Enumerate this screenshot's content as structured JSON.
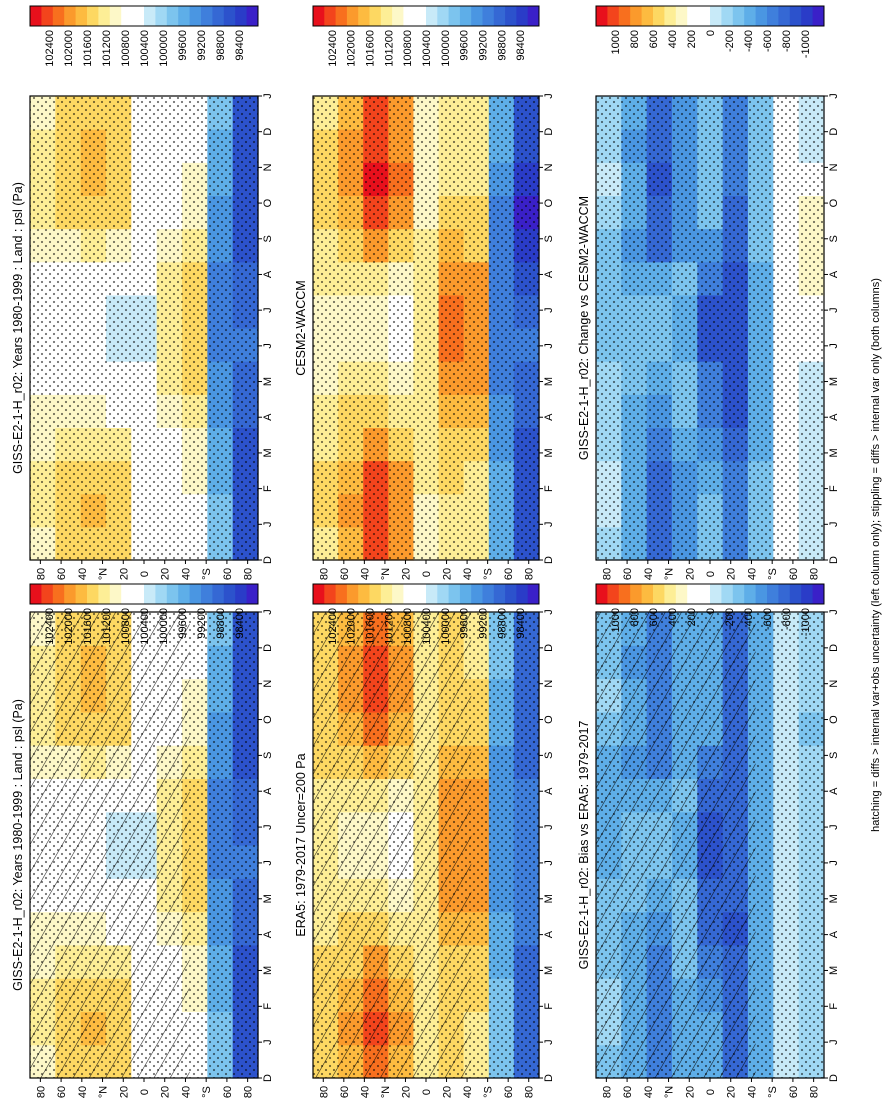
{
  "figure": {
    "footnote": "hatching = diffs > internal var+obs uncertainty (left column only); stippling = diffs > internal var only (both columns)",
    "month_ticks": [
      "D",
      "J",
      "F",
      "M",
      "A",
      "M",
      "J",
      "J",
      "A",
      "S",
      "O",
      "N",
      "D",
      "J"
    ],
    "lat_ticks": [
      "80",
      "60",
      "40",
      "°N",
      "20",
      "0",
      "20",
      "40",
      "°S",
      "60",
      "80"
    ],
    "colorbar_abs": {
      "labels": [
        "102400",
        "102000",
        "101600",
        "101200",
        "100800",
        "100400",
        "100000",
        "99600",
        "99200",
        "98800",
        "98400"
      ],
      "colors": [
        "#e8101c",
        "#f3441c",
        "#f86f1e",
        "#fb9a2c",
        "#fdbb40",
        "#fdd862",
        "#fdee96",
        "#fdf8c8",
        "#ffffff",
        "#ffffff",
        "#c8eaf8",
        "#a0d8f4",
        "#7cc4ee",
        "#5eaee8",
        "#4a96e2",
        "#3f7fdc",
        "#3568d4",
        "#2c52cc",
        "#2a3cc8",
        "#3a20c8"
      ]
    },
    "colorbar_diff": {
      "labels": [
        "1000",
        "800",
        "600",
        "400",
        "200",
        "0",
        "-200",
        "-400",
        "-600",
        "-800",
        "-1000"
      ],
      "colors": [
        "#e8101c",
        "#f3441c",
        "#f86f1e",
        "#fb9a2c",
        "#fdbb40",
        "#fdd862",
        "#fdee96",
        "#fdf8c8",
        "#ffffff",
        "#ffffff",
        "#c8eaf8",
        "#a0d8f4",
        "#7cc4ee",
        "#5eaee8",
        "#4a96e2",
        "#3f7fdc",
        "#3568d4",
        "#2c52cc",
        "#2a3cc8",
        "#3a20c8"
      ]
    }
  },
  "chart_data": [
    {
      "type": "heatmap",
      "panel": "top-left",
      "title": "GISS-E2-1-H_r02: Years 1980-1999 : Land : psl (Pa)",
      "x": [
        "D",
        "J",
        "F",
        "M",
        "A",
        "M",
        "J",
        "J",
        "A",
        "S",
        "O",
        "N",
        "D",
        "J"
      ],
      "y": [
        80,
        60,
        40,
        20,
        0,
        -20,
        -40,
        -60,
        -80
      ],
      "xlabel": "month",
      "ylabel": "latitude",
      "colorbar": "abs",
      "overlay": "hatching+stippling",
      "features": {
        "nh_high_peak_pa": 101800,
        "nh_high_months": [
          "N",
          "D",
          "J",
          "F"
        ],
        "sh_high_peak_pa": 101600,
        "sh_high_months": [
          "J",
          "J",
          "A"
        ],
        "equatorial_low_pa": 100200,
        "southern_ocean_low_pa": 98600
      },
      "values": [
        [
          101000,
          101200,
          101200,
          101000,
          100900,
          100800,
          100700,
          100700,
          100800,
          100900,
          101100,
          101200,
          101100,
          101000
        ],
        [
          101300,
          101400,
          101300,
          101100,
          100900,
          100800,
          100700,
          100700,
          100800,
          101000,
          101300,
          101400,
          101300,
          101300
        ],
        [
          101500,
          101600,
          101500,
          101200,
          100900,
          100700,
          100600,
          100600,
          100800,
          101100,
          101500,
          101700,
          101600,
          101500
        ],
        [
          101300,
          101400,
          101300,
          101100,
          100800,
          100600,
          100400,
          100400,
          100700,
          101000,
          101300,
          101500,
          101400,
          101300
        ],
        [
          100700,
          100700,
          100700,
          100600,
          100500,
          100500,
          100400,
          100400,
          100500,
          100600,
          100700,
          100700,
          100700,
          100700
        ],
        [
          100600,
          100600,
          100700,
          100800,
          100900,
          101100,
          101200,
          101200,
          101100,
          100900,
          100700,
          100600,
          100600,
          100600
        ],
        [
          100800,
          100800,
          100900,
          101000,
          101200,
          101400,
          101500,
          101500,
          101400,
          101200,
          101000,
          100900,
          100800,
          100800
        ],
        [
          99800,
          99800,
          99700,
          99600,
          99500,
          99400,
          99300,
          99300,
          99300,
          99400,
          99500,
          99600,
          99700,
          99800
        ],
        [
          98800,
          98700,
          98700,
          98800,
          98900,
          99000,
          99100,
          99000,
          98900,
          98800,
          98700,
          98700,
          98700,
          98800
        ]
      ]
    },
    {
      "type": "heatmap",
      "panel": "top-right",
      "title": "GISS-E2-1-H_r02: Years 1980-1999 : Land : psl (Pa)",
      "x": [
        "D",
        "J",
        "F",
        "M",
        "A",
        "M",
        "J",
        "J",
        "A",
        "S",
        "O",
        "N",
        "D",
        "J"
      ],
      "y": [
        80,
        60,
        40,
        20,
        0,
        -20,
        -40,
        -60,
        -80
      ],
      "xlabel": "month",
      "ylabel": "latitude",
      "colorbar": "abs",
      "overlay": "stippling",
      "values": [
        [
          101000,
          101200,
          101200,
          101000,
          100900,
          100800,
          100700,
          100700,
          100800,
          100900,
          101100,
          101200,
          101100,
          101000
        ],
        [
          101300,
          101400,
          101300,
          101100,
          100900,
          100800,
          100700,
          100700,
          100800,
          101000,
          101300,
          101400,
          101300,
          101300
        ],
        [
          101500,
          101600,
          101500,
          101200,
          100900,
          100700,
          100600,
          100600,
          100800,
          101100,
          101500,
          101700,
          101600,
          101500
        ],
        [
          101300,
          101400,
          101300,
          101100,
          100800,
          100600,
          100400,
          100400,
          100700,
          101000,
          101300,
          101500,
          101400,
          101300
        ],
        [
          100700,
          100700,
          100700,
          100600,
          100500,
          100500,
          100400,
          100400,
          100500,
          100600,
          100700,
          100700,
          100700,
          100700
        ],
        [
          100600,
          100600,
          100700,
          100800,
          100900,
          101100,
          101200,
          101200,
          101100,
          100900,
          100700,
          100600,
          100600,
          100600
        ],
        [
          100800,
          100800,
          100900,
          101000,
          101200,
          101400,
          101500,
          101500,
          101400,
          101200,
          101000,
          100900,
          100800,
          100800
        ],
        [
          99800,
          99800,
          99700,
          99600,
          99500,
          99400,
          99300,
          99300,
          99300,
          99400,
          99500,
          99600,
          99700,
          99800
        ],
        [
          98800,
          98700,
          98700,
          98800,
          98900,
          99000,
          99100,
          99000,
          98900,
          98800,
          98700,
          98700,
          98700,
          98800
        ]
      ]
    },
    {
      "type": "heatmap",
      "panel": "middle-left",
      "title": "ERA5: 1979-2017 Uncer=200 Pa",
      "x": [
        "D",
        "J",
        "F",
        "M",
        "A",
        "M",
        "J",
        "J",
        "A",
        "S",
        "O",
        "N",
        "D",
        "J"
      ],
      "y": [
        80,
        60,
        40,
        20,
        0,
        -20,
        -40,
        -60,
        -80
      ],
      "xlabel": "month",
      "ylabel": "latitude",
      "colorbar": "abs",
      "overlay": "hatching+stippling",
      "values": [
        [
          101300,
          101400,
          101400,
          101300,
          101200,
          101100,
          101100,
          101100,
          101200,
          101300,
          101400,
          101400,
          101400,
          101300
        ],
        [
          101700,
          101800,
          101700,
          101500,
          101300,
          101100,
          101000,
          101000,
          101200,
          101500,
          101700,
          101800,
          101800,
          101700
        ],
        [
          102100,
          102200,
          102100,
          101800,
          101400,
          101100,
          100900,
          100900,
          101200,
          101700,
          102100,
          102300,
          102200,
          102100
        ],
        [
          101700,
          101800,
          101700,
          101400,
          101100,
          100900,
          100800,
          100800,
          101000,
          101400,
          101700,
          101900,
          101800,
          101700
        ],
        [
          101100,
          101100,
          101200,
          101200,
          101200,
          101200,
          101200,
          101200,
          101200,
          101200,
          101100,
          101100,
          101100,
          101100
        ],
        [
          101300,
          101300,
          101400,
          101500,
          101700,
          101800,
          101900,
          101900,
          101800,
          101600,
          101400,
          101300,
          101300,
          101300
        ],
        [
          101200,
          101200,
          101300,
          101400,
          101600,
          101800,
          101900,
          101900,
          101800,
          101600,
          101400,
          101300,
          101200,
          101200
        ],
        [
          99900,
          99900,
          99800,
          99700,
          99600,
          99500,
          99400,
          99400,
          99400,
          99500,
          99600,
          99700,
          99800,
          99900
        ],
        [
          99000,
          98900,
          98900,
          99000,
          99100,
          99200,
          99300,
          99200,
          99100,
          99000,
          98900,
          98900,
          98900,
          99000
        ]
      ]
    },
    {
      "type": "heatmap",
      "panel": "middle-right",
      "title": "CESM2-WACCM",
      "x": [
        "D",
        "J",
        "F",
        "M",
        "A",
        "M",
        "J",
        "J",
        "A",
        "S",
        "O",
        "N",
        "D",
        "J"
      ],
      "y": [
        80,
        60,
        40,
        20,
        0,
        -20,
        -40,
        -60,
        -80
      ],
      "xlabel": "month",
      "ylabel": "latitude",
      "colorbar": "abs",
      "overlay": "stippling",
      "values": [
        [
          101200,
          101300,
          101300,
          101200,
          101100,
          101000,
          101000,
          101000,
          101100,
          101200,
          101300,
          101300,
          101300,
          101200
        ],
        [
          101700,
          101800,
          101700,
          101500,
          101300,
          101100,
          101000,
          101000,
          101200,
          101500,
          101700,
          101800,
          101800,
          101700
        ],
        [
          102200,
          102300,
          102200,
          101800,
          101400,
          101100,
          100900,
          100900,
          101200,
          101800,
          102200,
          102400,
          102300,
          102200
        ],
        [
          101800,
          101900,
          101800,
          101500,
          101100,
          100900,
          100800,
          100800,
          101000,
          101500,
          101800,
          102000,
          101900,
          101800
        ],
        [
          101000,
          101000,
          101100,
          101100,
          101100,
          101100,
          101200,
          101200,
          101100,
          101100,
          101000,
          101000,
          101000,
          101000
        ],
        [
          101200,
          101200,
          101300,
          101500,
          101700,
          101900,
          102000,
          102000,
          101900,
          101600,
          101400,
          101200,
          101200,
          101200
        ],
        [
          101100,
          101100,
          101200,
          101400,
          101600,
          101800,
          101900,
          101900,
          101800,
          101500,
          101300,
          101200,
          101100,
          101100
        ],
        [
          99700,
          99700,
          99600,
          99500,
          99400,
          99300,
          99200,
          99100,
          99100,
          99200,
          99300,
          99500,
          99600,
          99700
        ],
        [
          98800,
          98700,
          98700,
          98800,
          98900,
          99000,
          99100,
          98900,
          98700,
          98500,
          98400,
          98500,
          98700,
          98800
        ]
      ]
    },
    {
      "type": "heatmap",
      "panel": "bottom-left",
      "title": "GISS-E2-1-H_r02: Bias vs ERA5: 1979-2017",
      "x": [
        "D",
        "J",
        "F",
        "M",
        "A",
        "M",
        "J",
        "J",
        "A",
        "S",
        "O",
        "N",
        "D",
        "J"
      ],
      "y": [
        80,
        60,
        40,
        20,
        0,
        -20,
        -40,
        -60,
        -80
      ],
      "xlabel": "month",
      "ylabel": "latitude",
      "colorbar": "diff",
      "overlay": "hatching+stippling",
      "values": [
        [
          -300,
          -200,
          -200,
          -300,
          -300,
          -300,
          -400,
          -400,
          -400,
          -400,
          -300,
          -200,
          -300,
          -300
        ],
        [
          -400,
          -400,
          -400,
          -400,
          -400,
          -300,
          -300,
          -300,
          -400,
          -500,
          -400,
          -400,
          -500,
          -400
        ],
        [
          -600,
          -600,
          -600,
          -600,
          -500,
          -400,
          -300,
          -300,
          -400,
          -600,
          -600,
          -600,
          -600,
          -600
        ],
        [
          -400,
          -400,
          -400,
          -300,
          -300,
          -300,
          -400,
          -400,
          -300,
          -400,
          -400,
          -400,
          -400,
          -400
        ],
        [
          -400,
          -400,
          -500,
          -600,
          -700,
          -700,
          -800,
          -800,
          -700,
          -600,
          -400,
          -400,
          -400,
          -400
        ],
        [
          -700,
          -700,
          -700,
          -700,
          -800,
          -700,
          -700,
          -700,
          -700,
          -700,
          -700,
          -700,
          -700,
          -700
        ],
        [
          -400,
          -400,
          -400,
          -400,
          -400,
          -400,
          -400,
          -400,
          -400,
          -400,
          -400,
          -400,
          -400,
          -400
        ],
        [
          -100,
          -100,
          -100,
          -100,
          -100,
          -100,
          -100,
          -100,
          -100,
          -100,
          -100,
          -100,
          -100,
          -100
        ],
        [
          -200,
          -200,
          -200,
          -200,
          -200,
          -200,
          -200,
          -200,
          -200,
          -200,
          -300,
          -200,
          -200,
          -200
        ]
      ]
    },
    {
      "type": "heatmap",
      "panel": "bottom-right",
      "title": "GISS-E2-1-H_r02: Change vs CESM2-WACCM",
      "x": [
        "D",
        "J",
        "F",
        "M",
        "A",
        "M",
        "J",
        "J",
        "A",
        "S",
        "O",
        "N",
        "D",
        "J"
      ],
      "y": [
        80,
        60,
        40,
        20,
        0,
        -20,
        -40,
        -60,
        -80
      ],
      "xlabel": "month",
      "ylabel": "latitude",
      "colorbar": "diff",
      "overlay": "stippling",
      "values": [
        [
          -200,
          -100,
          -100,
          -200,
          -200,
          -200,
          -300,
          -300,
          -300,
          -300,
          -200,
          -100,
          -200,
          -200
        ],
        [
          -400,
          -400,
          -400,
          -400,
          -400,
          -300,
          -300,
          -300,
          -400,
          -500,
          -400,
          -400,
          -500,
          -400
        ],
        [
          -700,
          -700,
          -700,
          -600,
          -500,
          -400,
          -300,
          -300,
          -400,
          -700,
          -700,
          -800,
          -700,
          -700
        ],
        [
          -500,
          -500,
          -500,
          -400,
          -300,
          -300,
          -400,
          -400,
          -300,
          -500,
          -500,
          -500,
          -500,
          -500
        ],
        [
          -300,
          -300,
          -400,
          -500,
          -600,
          -600,
          -800,
          -800,
          -600,
          -500,
          -300,
          -300,
          -300,
          -300
        ],
        [
          -600,
          -600,
          -600,
          -700,
          -800,
          -800,
          -800,
          -800,
          -800,
          -700,
          -700,
          -600,
          -600,
          -600
        ],
        [
          -300,
          -300,
          -300,
          -400,
          -400,
          -400,
          -400,
          -400,
          -400,
          -300,
          -300,
          -300,
          -300,
          -300
        ],
        [
          100,
          100,
          100,
          100,
          100,
          100,
          100,
          200,
          200,
          200,
          200,
          100,
          100,
          100
        ],
        [
          0,
          0,
          0,
          0,
          0,
          0,
          100,
          200,
          300,
          300,
          300,
          200,
          0,
          0
        ]
      ]
    }
  ]
}
